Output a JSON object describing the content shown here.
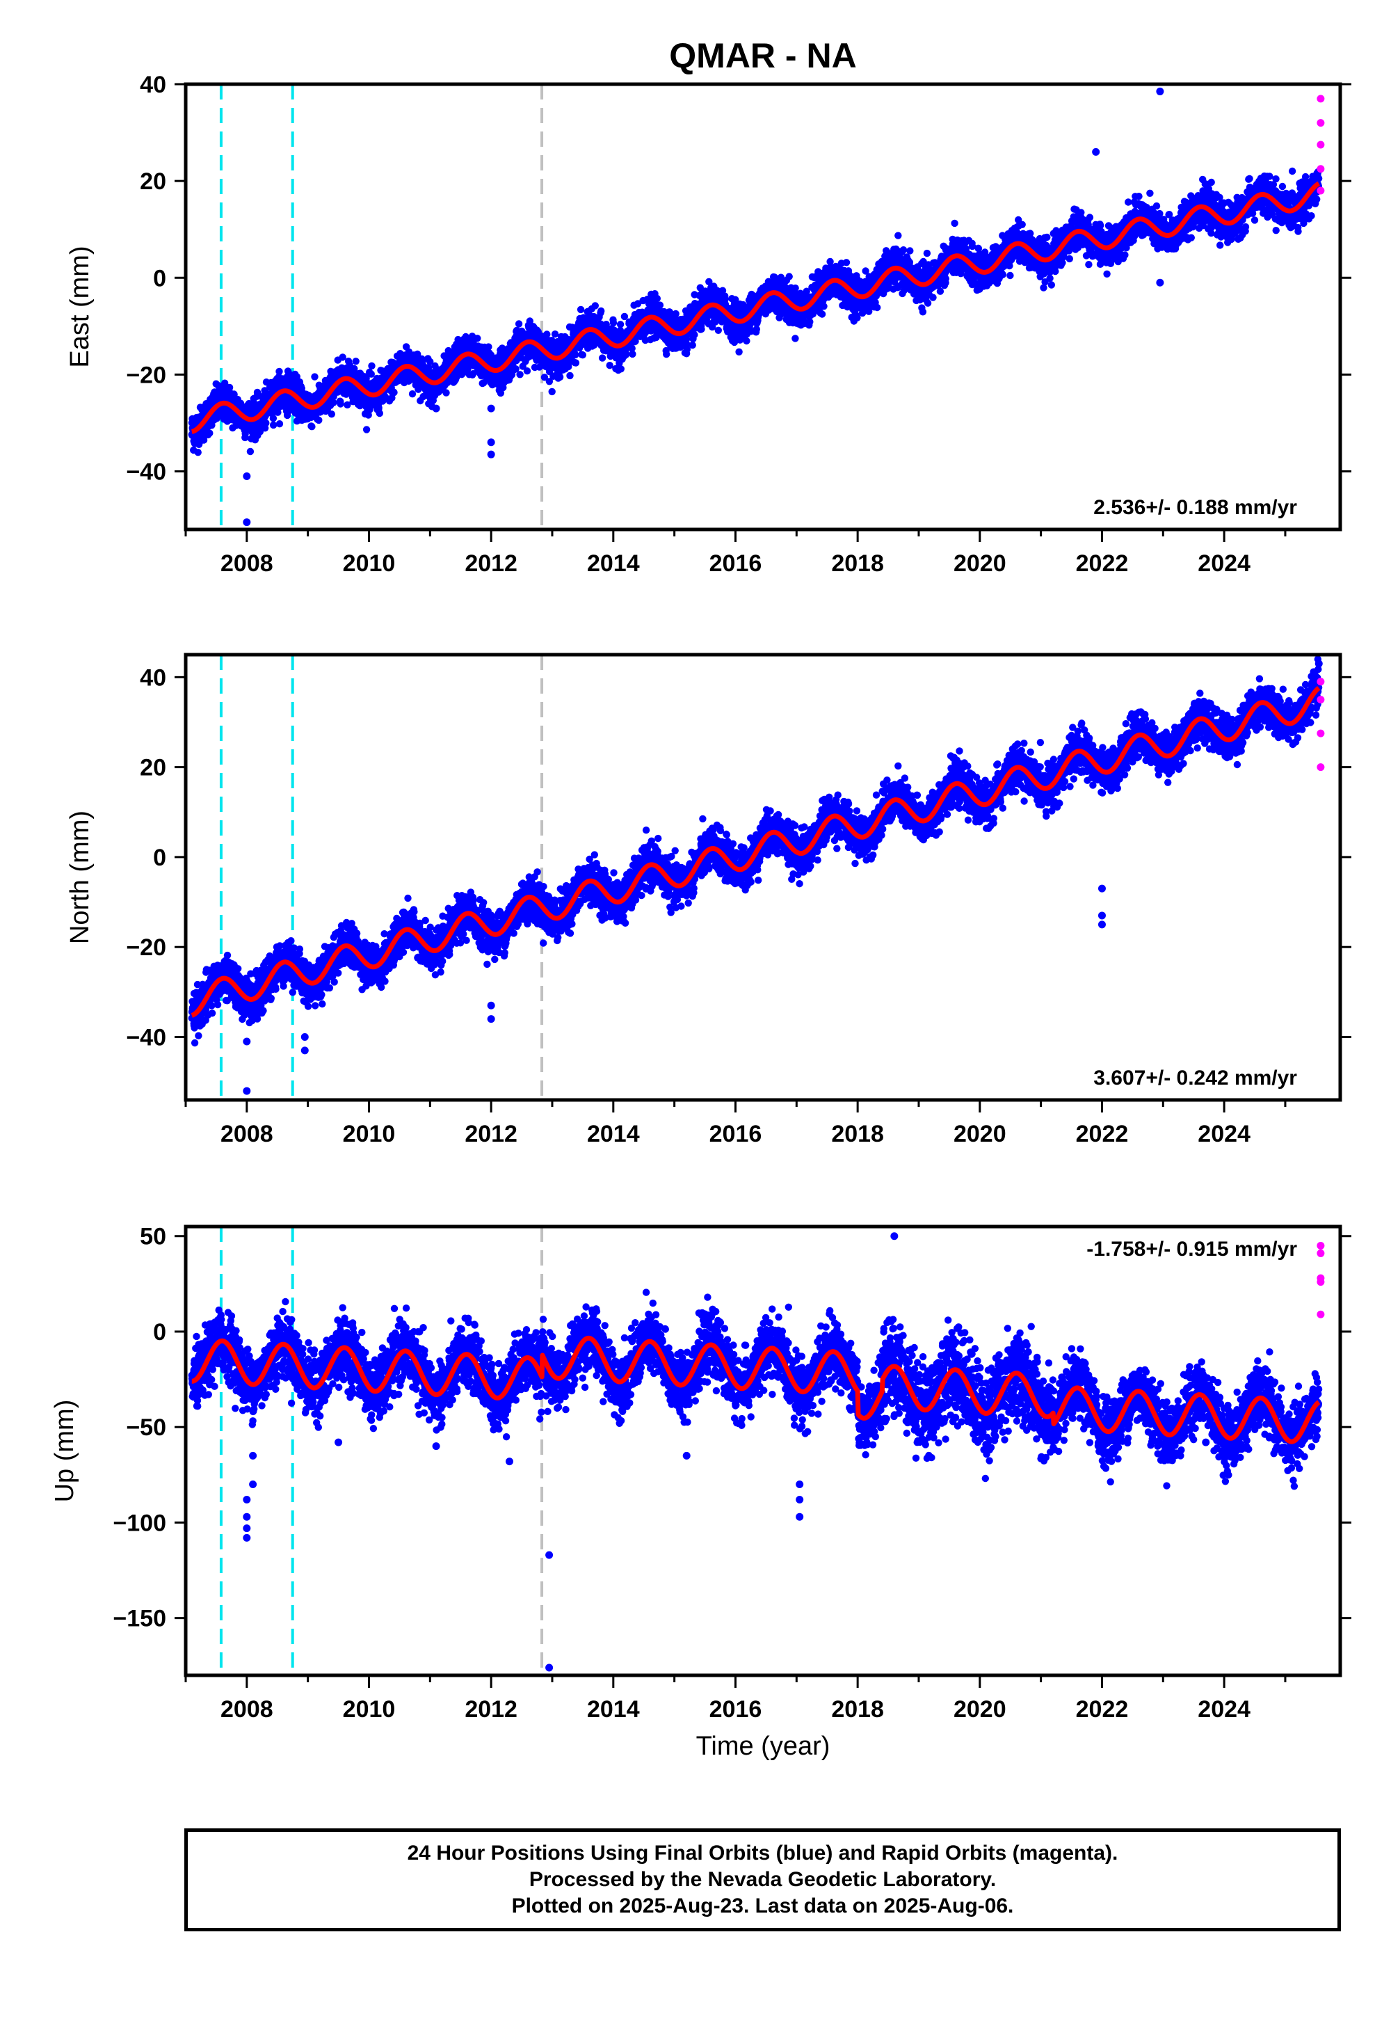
{
  "chart_data": {
    "title": "QMAR - NA",
    "xlabel": "Time (year)",
    "xlim": [
      2007.0,
      2025.9
    ],
    "x_ticks": [
      "2008",
      "2010",
      "2012",
      "2014",
      "2016",
      "2018",
      "2020",
      "2022",
      "2024"
    ],
    "x_tick_values": [
      2008,
      2010,
      2012,
      2014,
      2016,
      2018,
      2020,
      2022,
      2024
    ],
    "x_minor_ticks": [
      2007,
      2009,
      2011,
      2013,
      2015,
      2017,
      2019,
      2021,
      2023,
      2025
    ],
    "grid": false,
    "colors": {
      "final_orbits": "#0000ff",
      "rapid_orbits": "#ff00ff",
      "model_fit": "#ff0000",
      "equipment_change": "#00e5ee",
      "other_event": "#c0c0c0"
    },
    "event_lines": [
      {
        "x": 2007.58,
        "color": "#00e5ee"
      },
      {
        "x": 2008.75,
        "color": "#00e5ee"
      },
      {
        "x": 2012.83,
        "color": "#c0c0c0"
      }
    ],
    "panels": [
      {
        "type": "scatter",
        "ylabel": "East (mm)",
        "ylim": [
          -52,
          40
        ],
        "y_ticks": [
          -40,
          -20,
          0,
          20,
          40
        ],
        "rate_text": "2.536+/- 0.188 mm/yr",
        "rate_position": "bottom-right",
        "x0": 2007.1,
        "y0": -29.5,
        "slope": 2.536,
        "seasonal_amp": 2.3,
        "noise": 1.9,
        "x_end": 2025.55,
        "outliers": [
          [
            2008.0,
            -50.5
          ],
          [
            2008.0,
            -41
          ],
          [
            2012.0,
            -36.5
          ],
          [
            2012.0,
            -34
          ],
          [
            2012.0,
            -27
          ],
          [
            2011.1,
            -27
          ],
          [
            2022.95,
            38.5
          ],
          [
            2022.95,
            -1
          ],
          [
            2021.9,
            26
          ]
        ],
        "rapid_points": [
          [
            2025.58,
            37
          ],
          [
            2025.58,
            32
          ],
          [
            2025.58,
            27.5
          ],
          [
            2025.58,
            22.5
          ],
          [
            2025.58,
            18
          ]
        ]
      },
      {
        "type": "scatter",
        "ylabel": "North (mm)",
        "ylim": [
          -54,
          45
        ],
        "y_ticks": [
          -40,
          -20,
          0,
          20,
          40
        ],
        "rate_text": "3.607+/- 0.242 mm/yr",
        "rate_position": "bottom-right",
        "x0": 2007.1,
        "y0": -32,
        "slope": 3.607,
        "seasonal_amp": 3.2,
        "noise": 2.3,
        "x_end": 2025.55,
        "outliers": [
          [
            2008.0,
            -52
          ],
          [
            2008.0,
            -41
          ],
          [
            2008.95,
            -43
          ],
          [
            2008.95,
            -40
          ],
          [
            2012.0,
            -36
          ],
          [
            2012.0,
            -33
          ],
          [
            2022.0,
            -15
          ],
          [
            2022.0,
            -13
          ],
          [
            2022.0,
            -7
          ],
          [
            2025.55,
            43
          ]
        ],
        "rapid_points": [
          [
            2025.58,
            39
          ],
          [
            2025.58,
            35
          ],
          [
            2025.58,
            27.5
          ],
          [
            2025.58,
            20
          ]
        ]
      },
      {
        "type": "scatter",
        "ylabel": "Up (mm)",
        "ylim": [
          -180,
          55
        ],
        "y_ticks": [
          -150,
          -100,
          -50,
          0,
          50
        ],
        "rate_text": "-1.758+/- 0.915 mm/yr",
        "rate_position": "top-right",
        "x0": 2007.1,
        "y0": -15,
        "slope": -1.758,
        "seasonal_amp": 11,
        "noise": 8,
        "x_end": 2025.55,
        "outliers": [
          [
            2008.0,
            -108
          ],
          [
            2008.0,
            -103
          ],
          [
            2008.0,
            -97
          ],
          [
            2008.0,
            -88
          ],
          [
            2008.1,
            -80
          ],
          [
            2008.1,
            -65
          ],
          [
            2012.95,
            -176
          ],
          [
            2012.95,
            -117
          ],
          [
            2017.05,
            -97
          ],
          [
            2017.05,
            -88
          ],
          [
            2017.05,
            -80
          ],
          [
            2012.3,
            -68
          ],
          [
            2019.6,
            -45
          ],
          [
            2022.0,
            -60
          ],
          [
            2022.05,
            -64
          ],
          [
            2018.6,
            50
          ],
          [
            2011.1,
            -60
          ],
          [
            2009.5,
            -58
          ],
          [
            2015.2,
            -65
          ],
          [
            2023.7,
            -58
          ]
        ],
        "rapid_points": [
          [
            2025.58,
            45
          ],
          [
            2025.58,
            41
          ],
          [
            2025.58,
            28
          ],
          [
            2025.58,
            26
          ],
          [
            2025.58,
            9
          ]
        ]
      }
    ]
  },
  "footer": {
    "line1": "24 Hour Positions Using Final Orbits (blue) and Rapid Orbits (magenta).",
    "line2": "Processed by the Nevada Geodetic Laboratory.",
    "line3": "Plotted on 2025-Aug-23. Last data on 2025-Aug-06."
  }
}
